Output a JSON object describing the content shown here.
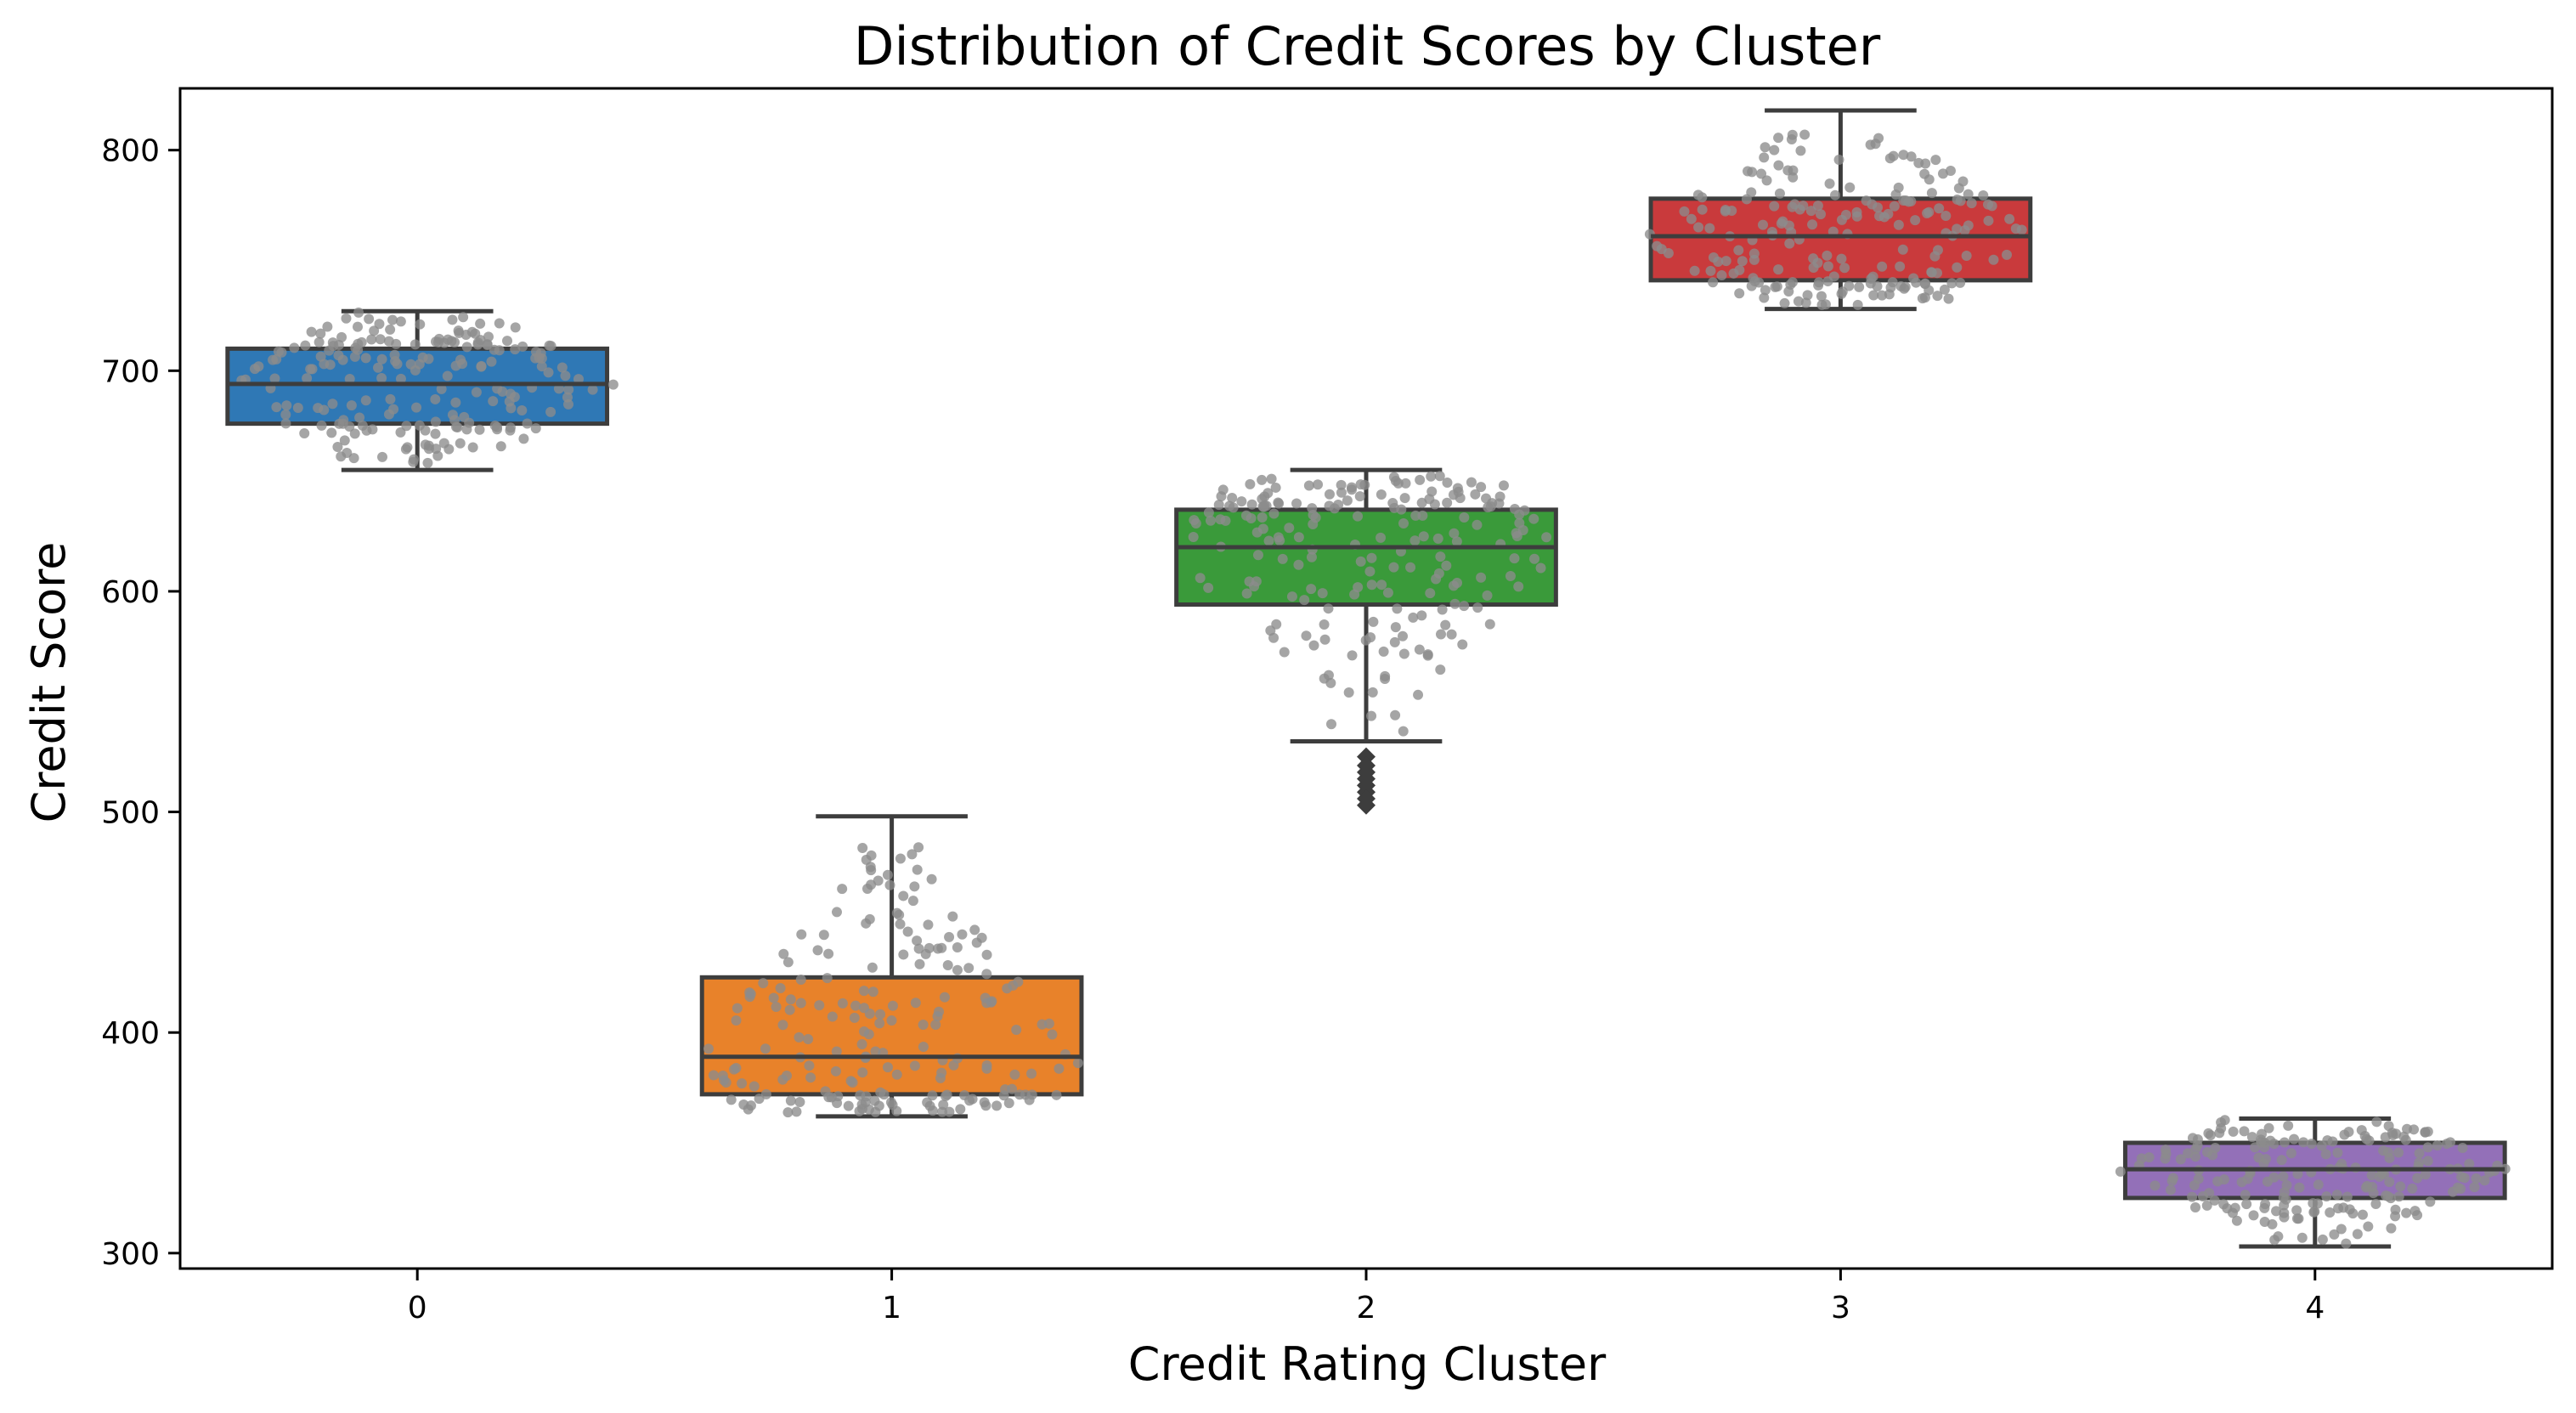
{
  "chart_data": {
    "type": "box",
    "title": "Distribution of Credit Scores by Cluster",
    "xlabel": "Credit Rating Cluster",
    "ylabel": "Credit Score",
    "ylim": [
      293,
      828
    ],
    "yticks": [
      300,
      400,
      500,
      600,
      700,
      800
    ],
    "categories": [
      "0",
      "1",
      "2",
      "3",
      "4"
    ],
    "grid": false,
    "legend": "none",
    "swarm_color": "#8c8c8c",
    "line_color": "#3d3d3d",
    "boxes": [
      {
        "category": "0",
        "color": "#2f78b5",
        "whisker_low": 655,
        "q1": 676,
        "median": 694,
        "q3": 710,
        "whisker_high": 727,
        "outliers": []
      },
      {
        "category": "1",
        "color": "#e8822a",
        "whisker_low": 362,
        "q1": 372,
        "median": 389,
        "q3": 425,
        "whisker_high": 498,
        "outliers": []
      },
      {
        "category": "2",
        "color": "#3a9a3a",
        "whisker_low": 532,
        "q1": 594,
        "median": 620,
        "q3": 637,
        "whisker_high": 655,
        "outliers": [
          525,
          521,
          518,
          515,
          512,
          509,
          506,
          503
        ]
      },
      {
        "category": "3",
        "color": "#c93a3c",
        "whisker_low": 728,
        "q1": 741,
        "median": 761,
        "q3": 778,
        "whisker_high": 818,
        "outliers": []
      },
      {
        "category": "4",
        "color": "#9370b8",
        "whisker_low": 303,
        "q1": 325,
        "median": 338,
        "q3": 350,
        "whisker_high": 361,
        "outliers": []
      }
    ]
  }
}
